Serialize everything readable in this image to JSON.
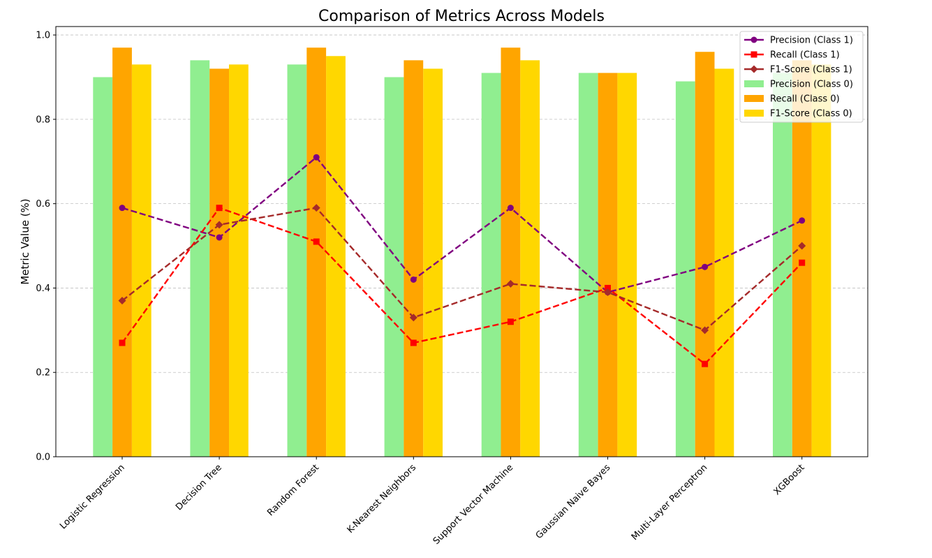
{
  "chart_data": {
    "type": "bar",
    "title": "Comparison of Metrics Across Models",
    "xlabel": "",
    "ylabel": "Metric Value (%)",
    "ylim": [
      0,
      1.02
    ],
    "yticks": [
      0.0,
      0.2,
      0.4,
      0.6,
      0.8,
      1.0
    ],
    "ytick_labels": [
      "0.0",
      "0.2",
      "0.4",
      "0.6",
      "0.8",
      "1.0"
    ],
    "grid": "y-dashed",
    "legend_position": "top-right",
    "categories": [
      "Logistic Regression",
      "Decision Tree",
      "Random Forest",
      "K-Nearest Neighbors",
      "Support Vector Machine",
      "Gaussian Naive Bayes",
      "Multi-Layer Perceptron",
      "XGBoost"
    ],
    "bar_series": [
      {
        "name": "Precision (Class 0)",
        "color": "#90ee90",
        "values": [
          0.9,
          0.94,
          0.93,
          0.9,
          0.91,
          0.91,
          0.89,
          0.91
        ]
      },
      {
        "name": "Recall (Class 0)",
        "color": "#ffa500",
        "values": [
          0.97,
          0.92,
          0.97,
          0.94,
          0.97,
          0.91,
          0.96,
          0.94
        ]
      },
      {
        "name": "F1-Score (Class 0)",
        "color": "#ffd700",
        "values": [
          0.93,
          0.93,
          0.95,
          0.92,
          0.94,
          0.91,
          0.92,
          0.93
        ]
      }
    ],
    "line_series": [
      {
        "name": "Precision (Class 1)",
        "color": "#800080",
        "marker": "circle",
        "values": [
          0.59,
          0.52,
          0.71,
          0.42,
          0.59,
          0.39,
          0.45,
          0.56
        ]
      },
      {
        "name": "Recall (Class 1)",
        "color": "#ff0000",
        "marker": "square",
        "values": [
          0.27,
          0.59,
          0.51,
          0.27,
          0.32,
          0.4,
          0.22,
          0.46
        ]
      },
      {
        "name": "F1-Score (Class 1)",
        "color": "#a52a2a",
        "marker": "diamond",
        "values": [
          0.37,
          0.55,
          0.59,
          0.33,
          0.41,
          0.39,
          0.3,
          0.5
        ]
      }
    ],
    "legend_order": [
      "Precision (Class 1)",
      "Recall (Class 1)",
      "F1-Score (Class 1)",
      "Precision (Class 0)",
      "Recall (Class 0)",
      "F1-Score (Class 0)"
    ]
  }
}
